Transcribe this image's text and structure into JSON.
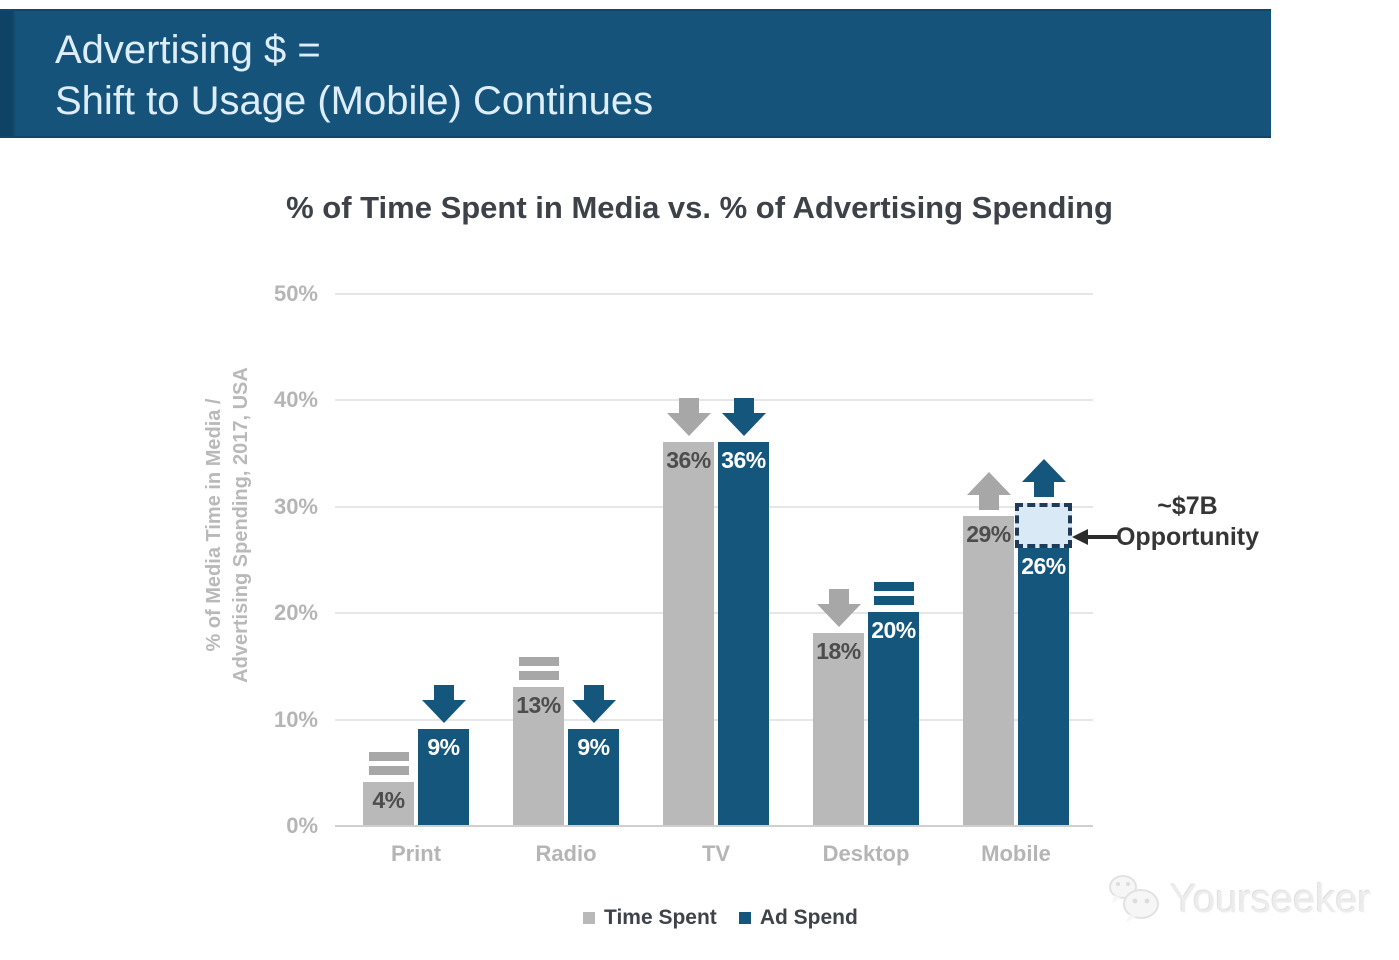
{
  "banner": {
    "line1": "Advertising $ =",
    "line2": "Shift to Usage (Mobile) Continues"
  },
  "chart_data": {
    "type": "bar",
    "title": "% of Time Spent in Media vs. % of Advertising Spending",
    "ylabel": "% of Media Time in Media / Advertising Spending, 2017, USA",
    "ylabel_lines": [
      "% of Media Time in Media /",
      "Advertising Spending, 2017, USA"
    ],
    "categories": [
      "Print",
      "Radio",
      "TV",
      "Desktop",
      "Mobile"
    ],
    "series": [
      {
        "name": "Time Spent",
        "color": "#b9b9b9",
        "values": [
          4,
          13,
          36,
          18,
          29
        ],
        "labels": [
          "4%",
          "13%",
          "36%",
          "18%",
          "29%"
        ],
        "trend_icons": [
          "equal",
          "equal",
          "down",
          "down",
          "up"
        ]
      },
      {
        "name": "Ad Spend",
        "color": "#15567d",
        "values": [
          9,
          9,
          36,
          20,
          26
        ],
        "labels": [
          "9%",
          "9%",
          "36%",
          "20%",
          "26%"
        ],
        "trend_icons": [
          "down",
          "down",
          "down",
          "equal",
          "up"
        ]
      }
    ],
    "ylim": [
      0,
      50
    ],
    "yticks": [
      {
        "value": 0,
        "label": "0%"
      },
      {
        "value": 10,
        "label": "10%"
      },
      {
        "value": 20,
        "label": "20%"
      },
      {
        "value": 30,
        "label": "30%"
      },
      {
        "value": 40,
        "label": "40%"
      },
      {
        "value": 50,
        "label": "50%"
      }
    ],
    "grid": true,
    "legend_position": "bottom",
    "annotation": {
      "line1": "~$7B",
      "line2": "Opportunity",
      "attached_to": "Mobile Ad Spend bar gap",
      "gap_from": 26,
      "gap_to": 29.5
    }
  },
  "legend": {
    "items": [
      {
        "label": "Time Spent",
        "color": "#b9b9b9"
      },
      {
        "label": "Ad Spend",
        "color": "#15567d"
      }
    ]
  },
  "watermark": {
    "text": "Yourseeker"
  },
  "colors": {
    "banner_bg": "#15537b",
    "banner_text": "#ddeefa",
    "bar_gray": "#b9b9b9",
    "bar_blue": "#15567d",
    "gray_arrow": "#a7a7a7",
    "value_on_gray": "#4d4d4d",
    "value_on_blue": "#ffffff",
    "axis_text": "#b5b5b5",
    "title_text": "#3d4248",
    "annotation_text": "#353535",
    "opportunity_fill": "#d9eaf6",
    "opportunity_border": "#1e3c5a",
    "gridline": "#e6e6e6"
  }
}
